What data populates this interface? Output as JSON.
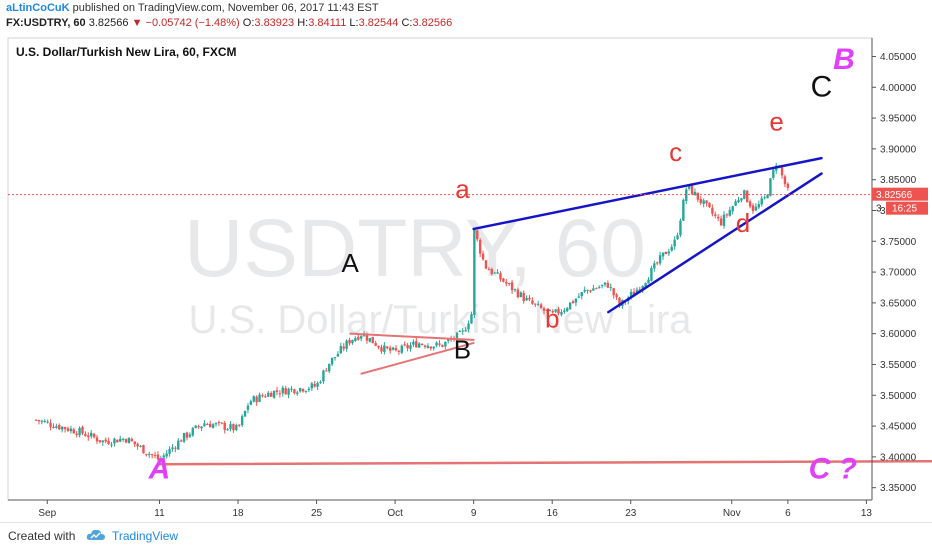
{
  "header": {
    "username": "aLtinCoCuK",
    "published_text": "published on TradingView.com, November 06, 2017 11:43 EST",
    "symbol": "FX:USDTRY, 60",
    "last": "3.82566",
    "change": "−0.05742 (−1.48%)",
    "o_label": "O:",
    "o": "3.83923",
    "h_label": "H:",
    "h": "3.84111",
    "l_label": "L:",
    "l": "3.82544",
    "c_label": "C:",
    "c": "3.82566"
  },
  "chart_title": "U.S. Dollar/Turkish New Lira, 60, FXCM",
  "watermark": {
    "line1": "USDTRY, 60",
    "line2": "U.S. Dollar/Turkish New Lira"
  },
  "price_badge": "3.82566",
  "countdown_badge": "16:25",
  "countdown_prefix": "3",
  "footer": {
    "created_with": "Created with",
    "brand": "TradingView"
  },
  "colors": {
    "candle_up": "#26a69a",
    "candle_down": "#ef5350",
    "trendline_blue": "#1515c8",
    "trendline_red": "#e57373",
    "label_red": "#e53935",
    "label_magenta": "#e040fb",
    "price_line": "#ef5350"
  },
  "chart_data": {
    "type": "candlestick",
    "title": "U.S. Dollar/Turkish New Lira, 60, FXCM",
    "x_ticks": [
      "Sep",
      "11",
      "18",
      "25",
      "Oct",
      "9",
      "16",
      "23",
      "Nov",
      "6",
      "13"
    ],
    "x_tick_dates": [
      "2017-09-01",
      "2017-09-11",
      "2017-09-18",
      "2017-09-25",
      "2017-10-02",
      "2017-10-09",
      "2017-10-16",
      "2017-10-23",
      "2017-11-01",
      "2017-11-06",
      "2017-11-13"
    ],
    "y_ticks": [
      "3.35000",
      "3.40000",
      "3.45000",
      "3.50000",
      "3.55000",
      "3.60000",
      "3.65000",
      "3.70000",
      "3.75000",
      "3.80000",
      "3.85000",
      "3.90000",
      "3.95000",
      "4.00000",
      "4.05000"
    ],
    "ylim": [
      3.33,
      4.08
    ],
    "last_price": 3.82566,
    "price_path": [
      [
        "2017-08-31",
        3.46
      ],
      [
        "2017-09-04",
        3.44
      ],
      [
        "2017-09-06",
        3.425
      ],
      [
        "2017-09-08",
        3.43
      ],
      [
        "2017-09-11",
        3.395
      ],
      [
        "2017-09-13",
        3.43
      ],
      [
        "2017-09-15",
        3.455
      ],
      [
        "2017-09-18",
        3.445
      ],
      [
        "2017-09-19",
        3.49
      ],
      [
        "2017-09-21",
        3.505
      ],
      [
        "2017-09-23",
        3.51
      ],
      [
        "2017-09-25",
        3.515
      ],
      [
        "2017-09-26",
        3.55
      ],
      [
        "2017-09-28",
        3.59
      ],
      [
        "2017-09-29",
        3.6
      ],
      [
        "2017-10-01",
        3.575
      ],
      [
        "2017-10-02",
        3.57
      ],
      [
        "2017-10-04",
        3.585
      ],
      [
        "2017-10-06",
        3.58
      ],
      [
        "2017-10-08",
        3.6
      ],
      [
        "2017-10-09",
        3.64
      ],
      [
        "2017-10-09",
        3.77
      ],
      [
        "2017-10-10",
        3.71
      ],
      [
        "2017-10-12",
        3.68
      ],
      [
        "2017-10-14",
        3.65
      ],
      [
        "2017-10-16",
        3.63
      ],
      [
        "2017-10-17",
        3.64
      ],
      [
        "2017-10-19",
        3.67
      ],
      [
        "2017-10-21",
        3.68
      ],
      [
        "2017-10-22",
        3.645
      ],
      [
        "2017-10-24",
        3.68
      ],
      [
        "2017-10-26",
        3.73
      ],
      [
        "2017-10-27",
        3.75
      ],
      [
        "2017-10-28",
        3.84
      ],
      [
        "2017-10-30",
        3.8
      ],
      [
        "2017-10-31",
        3.78
      ],
      [
        "2017-11-02",
        3.83
      ],
      [
        "2017-11-03",
        3.8
      ],
      [
        "2017-11-04",
        3.82
      ],
      [
        "2017-11-05",
        3.88
      ],
      [
        "2017-11-06",
        3.83
      ]
    ],
    "annotations": [
      {
        "text": "A",
        "date": "2017-09-28",
        "price": 3.7,
        "color": "#111111",
        "size": 26,
        "style": "normal"
      },
      {
        "text": "B",
        "date": "2017-10-08",
        "price": 3.56,
        "color": "#111111",
        "size": 26,
        "style": "normal"
      },
      {
        "text": "a",
        "date": "2017-10-08",
        "price": 3.82,
        "color": "#e53935",
        "size": 26,
        "style": "normal"
      },
      {
        "text": "b",
        "date": "2017-10-16",
        "price": 3.61,
        "color": "#e53935",
        "size": 26,
        "style": "normal"
      },
      {
        "text": "c",
        "date": "2017-10-27",
        "price": 3.88,
        "color": "#e53935",
        "size": 26,
        "style": "normal"
      },
      {
        "text": "d",
        "date": "2017-11-02",
        "price": 3.765,
        "color": "#e53935",
        "size": 26,
        "style": "normal"
      },
      {
        "text": "e",
        "date": "2017-11-05",
        "price": 3.93,
        "color": "#e53935",
        "size": 26,
        "style": "normal"
      },
      {
        "text": "C",
        "date": "2017-11-09",
        "price": 3.985,
        "color": "#111111",
        "size": 30,
        "style": "normal"
      },
      {
        "text": "B",
        "date": "2017-11-11",
        "price": 4.03,
        "color": "#e040fb",
        "size": 30,
        "style": "italic"
      },
      {
        "text": "A",
        "date": "2017-09-11",
        "price": 3.365,
        "color": "#e040fb",
        "size": 30,
        "style": "italic"
      },
      {
        "text": "C ?",
        "date": "2017-11-10",
        "price": 3.365,
        "color": "#e040fb",
        "size": 30,
        "style": "italic"
      }
    ],
    "trendlines": [
      {
        "from": [
          "2017-10-09",
          3.77
        ],
        "to": [
          "2017-11-09",
          3.885
        ],
        "color": "#1515c8",
        "width": 2.5
      },
      {
        "from": [
          "2017-10-21",
          3.635
        ],
        "to": [
          "2017-11-09",
          3.86
        ],
        "color": "#1515c8",
        "width": 2.5
      },
      {
        "from": [
          "2017-09-28",
          3.6
        ],
        "to": [
          "2017-10-09",
          3.59
        ],
        "color": "#e57373",
        "width": 2
      },
      {
        "from": [
          "2017-09-29",
          3.535
        ],
        "to": [
          "2017-10-09",
          3.585
        ],
        "color": "#e57373",
        "width": 2
      },
      {
        "from": [
          "2017-09-11",
          3.388
        ],
        "to": [
          "2017-11-20",
          3.393
        ],
        "color": "#e57373",
        "width": 2.5
      }
    ]
  }
}
